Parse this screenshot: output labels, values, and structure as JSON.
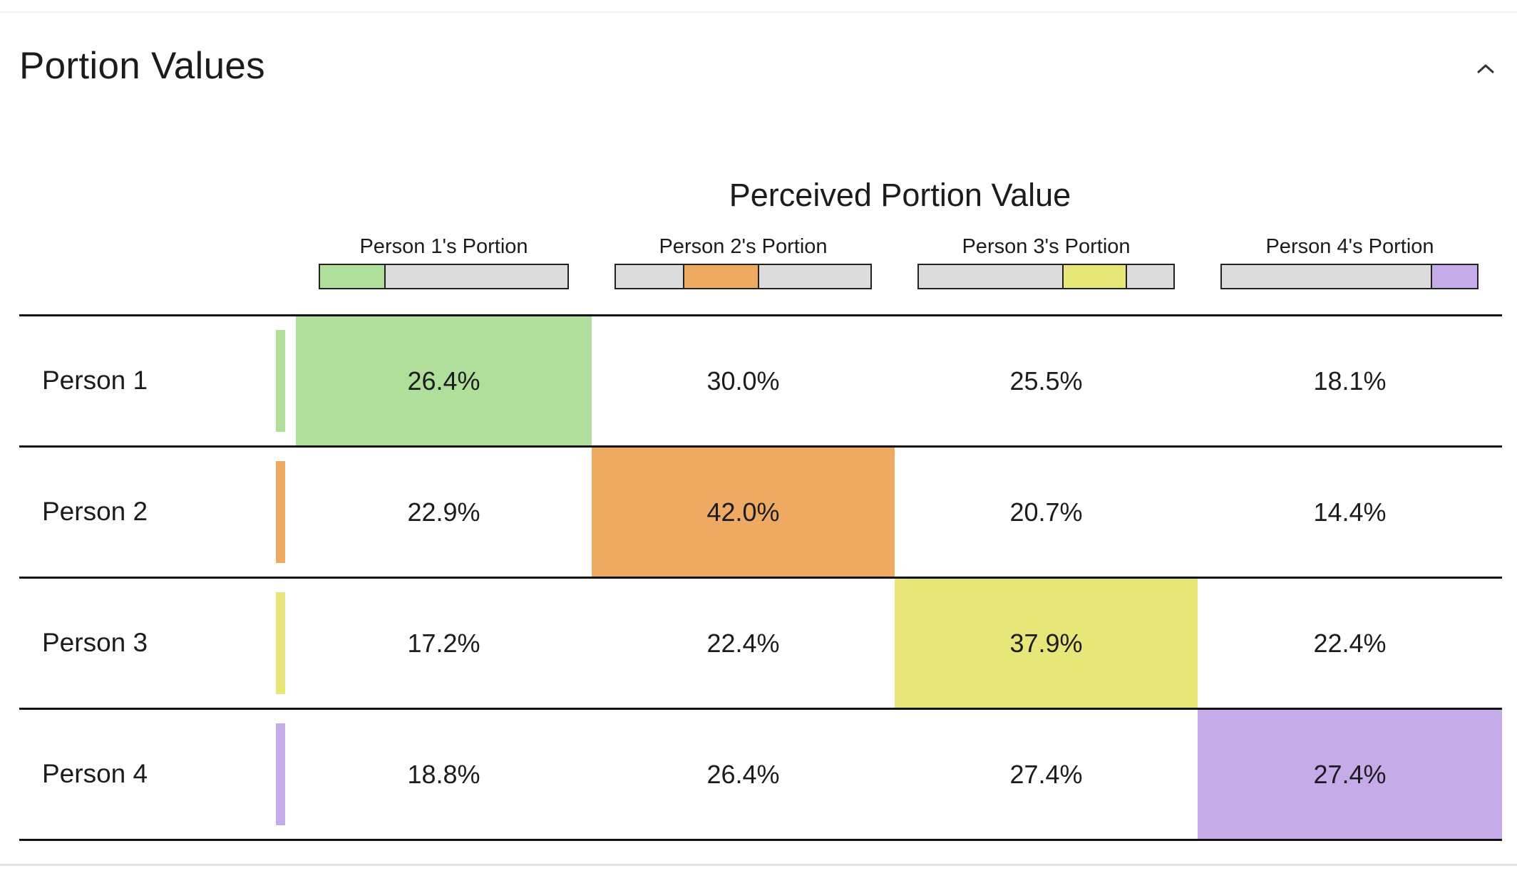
{
  "panel": {
    "title": "Portion Values",
    "collapse_icon": "chevron-up-icon"
  },
  "table": {
    "group_title": "Perceived Portion Value",
    "columns": [
      {
        "label": "Person 1's Portion",
        "color": "#afdf9b",
        "segment": [
          0.0,
          0.264
        ]
      },
      {
        "label": "Person 2's Portion",
        "color": "#eeaa63",
        "segment": [
          0.264,
          0.564
        ]
      },
      {
        "label": "Person 3's Portion",
        "color": "#e7e679",
        "segment": [
          0.564,
          0.819
        ]
      },
      {
        "label": "Person 4's Portion",
        "color": "#c5abe8",
        "segment": [
          0.819,
          1.0
        ]
      }
    ],
    "rows": [
      {
        "label": "Person 1",
        "color": "#afdf9b",
        "values": [
          "26.4%",
          "30.0%",
          "25.5%",
          "18.1%"
        ],
        "highlight": 0
      },
      {
        "label": "Person 2",
        "color": "#eeaa63",
        "values": [
          "22.9%",
          "42.0%",
          "20.7%",
          "14.4%"
        ],
        "highlight": 1
      },
      {
        "label": "Person 3",
        "color": "#e7e679",
        "values": [
          "17.2%",
          "22.4%",
          "37.9%",
          "22.4%"
        ],
        "highlight": 2
      },
      {
        "label": "Person 4",
        "color": "#c5abe8",
        "values": [
          "18.8%",
          "26.4%",
          "27.4%",
          "27.4%"
        ],
        "highlight": 3
      }
    ]
  }
}
